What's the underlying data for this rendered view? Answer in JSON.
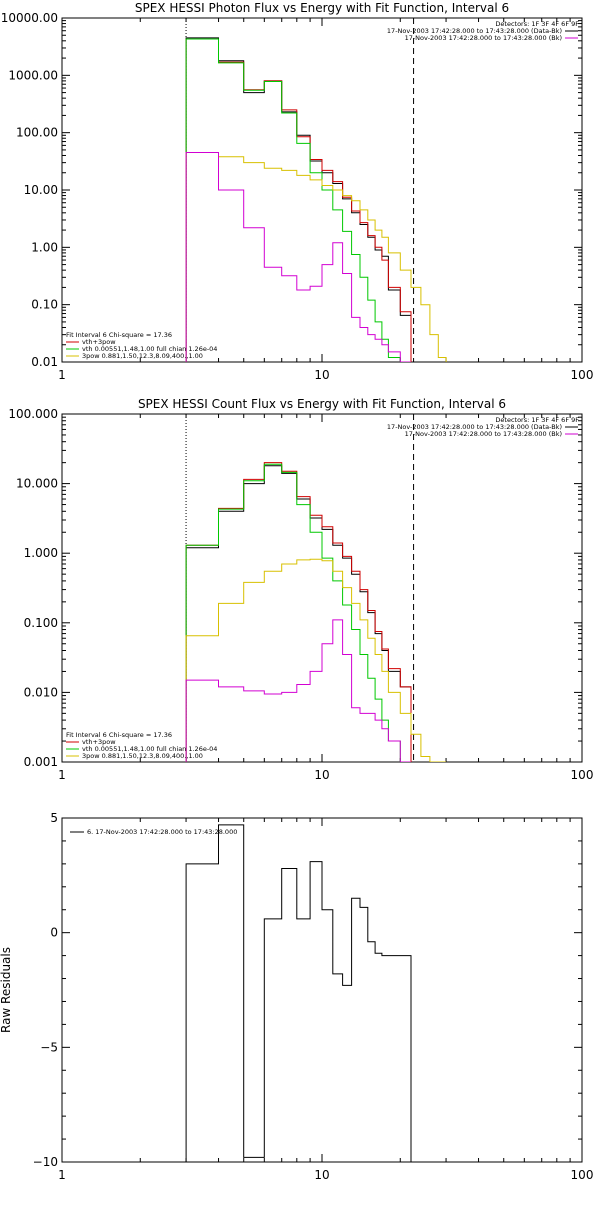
{
  "chart_data": [
    {
      "type": "line",
      "title": "SPEX HESSI Photon Flux vs Energy with Fit Function, Interval 6",
      "xlabel": "",
      "ylabel": "",
      "xscale": "log",
      "yscale": "log",
      "xlim": [
        1,
        100
      ],
      "ylim": [
        0.01,
        10000
      ],
      "x_ticks": [
        {
          "v": 1,
          "label": "1"
        },
        {
          "v": 10,
          "label": "10"
        },
        {
          "v": 100,
          "label": "100"
        }
      ],
      "y_ticks": [
        {
          "v": 10000,
          "label": "10000.00"
        },
        {
          "v": 1000,
          "label": "1000.00"
        },
        {
          "v": 100,
          "label": "100.00"
        },
        {
          "v": 10,
          "label": "10.00"
        },
        {
          "v": 1,
          "label": "1.00"
        },
        {
          "v": 0.1,
          "label": "0.10"
        },
        {
          "v": 0.01,
          "label": "0.01"
        }
      ],
      "vlines": [
        {
          "x": 3,
          "style": "dotted"
        },
        {
          "x": 22.5,
          "style": "dashed"
        }
      ],
      "legend_top_right": [
        {
          "text": "Detectors: 1F 3F 4F 6F 9F",
          "color": ""
        },
        {
          "text": "17-Nov-2003 17:42:28.000 to 17:43:28.000 (Data-Bk)",
          "color": "#000000"
        },
        {
          "text": "17-Nov-2003 17:42:28.000 to 17:43:28.000 (Bk)",
          "color": "#d200d2"
        }
      ],
      "legend_bottom_left": [
        {
          "text": "Fit Interval 6    Chi-square = 17.36",
          "color": ""
        },
        {
          "text": "vth+3pow",
          "color": "#d00000"
        },
        {
          "text": "vth 0.00551,1.48,1.00   full chian 1.26e-04",
          "color": "#00c800"
        },
        {
          "text": "3pow 0.881,1.50,12.3,8.09,400.,1.00",
          "color": "#d8c000"
        }
      ],
      "edges": [
        3,
        4,
        5,
        6,
        7,
        8,
        9,
        10,
        11,
        12,
        13,
        14,
        15,
        16,
        17,
        18,
        20,
        22,
        24,
        26,
        28,
        30
      ],
      "series": [
        {
          "name": "Data-Bk",
          "color": "#000000",
          "edges_to": 22,
          "floor": 0.01,
          "values": [
            4500,
            1800,
            500,
            800,
            230,
            90,
            32,
            20,
            13,
            7,
            4,
            2.5,
            1.5,
            0.9,
            0.7,
            0.18,
            0.065
          ]
        },
        {
          "name": "vth+3pow",
          "color": "#d00000",
          "edges_to": 22,
          "floor": 0.01,
          "values": [
            4300,
            1700,
            560,
            800,
            250,
            85,
            34,
            22,
            14,
            7.5,
            4.3,
            2.7,
            1.6,
            1.0,
            0.6,
            0.2,
            0.075
          ]
        },
        {
          "name": "vth",
          "color": "#00c800",
          "edges_to": 22,
          "floor": 0.01,
          "values": [
            4300,
            1650,
            550,
            780,
            220,
            65,
            20,
            10,
            4.5,
            1.9,
            0.75,
            0.3,
            0.12,
            0.05,
            0.025,
            0.012,
            0.006
          ]
        },
        {
          "name": "3pow",
          "color": "#d8c000",
          "edges_to": 30,
          "floor": 0.01,
          "values": [
            45,
            38,
            30,
            24,
            22,
            18,
            15,
            12,
            10,
            8,
            6.5,
            4.5,
            3,
            2,
            1.5,
            0.8,
            0.4,
            0.2,
            0.1,
            0.03,
            0.012
          ]
        },
        {
          "name": "Bk",
          "color": "#d200d2",
          "edges_to": 22,
          "floor": 0.01,
          "values": [
            45,
            10,
            2.2,
            0.45,
            0.32,
            0.18,
            0.21,
            0.5,
            1.2,
            0.35,
            0.06,
            0.04,
            0.03,
            0.025,
            0.02,
            0.015,
            0.002
          ]
        }
      ]
    },
    {
      "type": "line",
      "title": "SPEX HESSI Count Flux vs Energy with Fit Function, Interval 6",
      "xlabel": "",
      "ylabel": "",
      "xscale": "log",
      "yscale": "log",
      "xlim": [
        1,
        100
      ],
      "ylim": [
        0.001,
        100
      ],
      "x_ticks": [
        {
          "v": 1,
          "label": "1"
        },
        {
          "v": 10,
          "label": "10"
        },
        {
          "v": 100,
          "label": "100"
        }
      ],
      "y_ticks": [
        {
          "v": 100,
          "label": "100.000"
        },
        {
          "v": 10,
          "label": "10.000"
        },
        {
          "v": 1,
          "label": "1.000"
        },
        {
          "v": 0.1,
          "label": "0.100"
        },
        {
          "v": 0.01,
          "label": "0.010"
        },
        {
          "v": 0.001,
          "label": "0.001"
        }
      ],
      "vlines": [
        {
          "x": 3,
          "style": "dotted"
        },
        {
          "x": 22.5,
          "style": "dashed"
        }
      ],
      "legend_top_right": [
        {
          "text": "Detectors: 1F 3F 4F 6F 9F",
          "color": ""
        },
        {
          "text": "17-Nov-2003 17:42:28.000 to 17:43:28.000 (Data-Bk)",
          "color": "#000000"
        },
        {
          "text": "17-Nov-2003 17:42:28.000 to 17:43:28.000 (Bk)",
          "color": "#d200d2"
        }
      ],
      "legend_bottom_left": [
        {
          "text": "Fit Interval 6    Chi-square = 17.36",
          "color": ""
        },
        {
          "text": "vth+3pow",
          "color": "#d00000"
        },
        {
          "text": "vth 0.00551,1.48,1.00   full chian 1.26e-04",
          "color": "#00c800"
        },
        {
          "text": "3pow 0.881,1.50,12.3,8.09,400.,1.00",
          "color": "#d8c000"
        }
      ],
      "edges": [
        3,
        4,
        5,
        6,
        7,
        8,
        9,
        10,
        11,
        12,
        13,
        14,
        15,
        16,
        17,
        18,
        20,
        22,
        24,
        26,
        28,
        30
      ],
      "series": [
        {
          "name": "Data-Bk",
          "color": "#000000",
          "edges_to": 22,
          "floor": 0.001,
          "values": [
            1.2,
            4.0,
            10.0,
            18.0,
            14.0,
            6.0,
            3.2,
            2.2,
            1.3,
            0.85,
            0.5,
            0.28,
            0.14,
            0.07,
            0.04,
            0.02,
            0.012
          ]
        },
        {
          "name": "vth+3pow",
          "color": "#d00000",
          "edges_to": 22,
          "floor": 0.001,
          "values": [
            1.3,
            4.4,
            11.5,
            20.0,
            15.0,
            6.5,
            3.5,
            2.4,
            1.4,
            0.9,
            0.55,
            0.3,
            0.15,
            0.075,
            0.042,
            0.022,
            0.012
          ]
        },
        {
          "name": "vth",
          "color": "#00c800",
          "edges_to": 22,
          "floor": 0.001,
          "values": [
            1.3,
            4.3,
            11.0,
            19.0,
            14.5,
            5.0,
            2.0,
            0.85,
            0.4,
            0.18,
            0.08,
            0.035,
            0.016,
            0.008,
            0.004,
            0.002,
            0.0008
          ]
        },
        {
          "name": "3pow",
          "color": "#d8c000",
          "edges_to": 30,
          "floor": 0.001,
          "values": [
            0.065,
            0.19,
            0.38,
            0.55,
            0.7,
            0.8,
            0.82,
            0.78,
            0.55,
            0.32,
            0.19,
            0.11,
            0.06,
            0.035,
            0.02,
            0.01,
            0.005,
            0.0025,
            0.0012,
            0.0008,
            0.0005
          ]
        },
        {
          "name": "Bk",
          "color": "#d200d2",
          "edges_to": 22,
          "floor": 0.001,
          "values": [
            0.015,
            0.012,
            0.0105,
            0.0095,
            0.01,
            0.013,
            0.02,
            0.05,
            0.11,
            0.035,
            0.006,
            0.005,
            0.005,
            0.004,
            0.003,
            0.002,
            0.0005
          ]
        }
      ]
    },
    {
      "type": "line",
      "title": "",
      "xlabel": "",
      "ylabel": "Raw Residuals",
      "xscale": "log",
      "yscale": "linear",
      "xlim": [
        1,
        100
      ],
      "ylim": [
        -10,
        5
      ],
      "x_ticks": [
        {
          "v": 1,
          "label": "1"
        },
        {
          "v": 10,
          "label": "10"
        },
        {
          "v": 100,
          "label": "100"
        }
      ],
      "y_ticks": [
        {
          "v": 5,
          "label": "5"
        },
        {
          "v": 0,
          "label": "0"
        },
        {
          "v": -5,
          "label": "−5"
        },
        {
          "v": -10,
          "label": "−10"
        }
      ],
      "vlines": [],
      "legend_top_left": [
        {
          "text": "6. 17-Nov-2003 17:42:28.000 to 17:43:28.000",
          "color": "#000000"
        }
      ],
      "edges": [
        3,
        4,
        5,
        6,
        7,
        8,
        9,
        10,
        11,
        12,
        13,
        14,
        15,
        16,
        17,
        18,
        20,
        22
      ],
      "series": [
        {
          "name": "6. 17-Nov-2003 17:42:28.000 to 17:43:28.000",
          "color": "#000000",
          "edges_to": 22,
          "floor": -10,
          "values": [
            3.0,
            4.7,
            -9.8,
            0.6,
            2.8,
            0.6,
            3.1,
            1.0,
            -1.8,
            -2.3,
            1.5,
            1.1,
            -0.4,
            -0.9,
            -1.0,
            -1.0,
            -1.0
          ]
        }
      ]
    }
  ]
}
